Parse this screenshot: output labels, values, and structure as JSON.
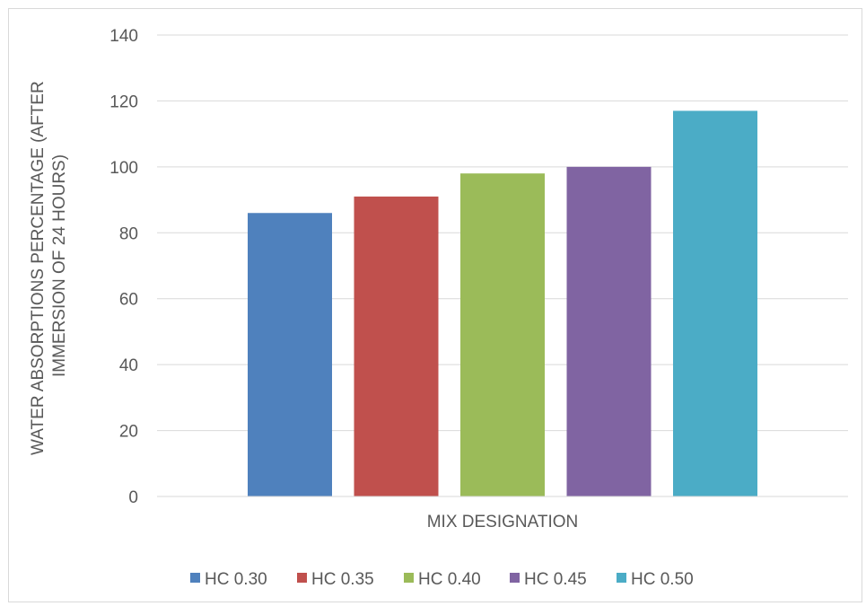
{
  "chart_data": {
    "type": "bar",
    "title": "",
    "xlabel": "MIX DESIGNATION",
    "ylabel_lines": [
      "WATER ABSORPTIONS PERCENTAGE  (AFTER",
      "IMMERSION OF 24 HOURS)"
    ],
    "ylim": [
      0,
      140
    ],
    "yticks": [
      0,
      20,
      40,
      60,
      80,
      100,
      120,
      140
    ],
    "grid": true,
    "legend_position": "bottom",
    "series": [
      {
        "name": "HC 0.30",
        "value": 86,
        "color": "#4f81bd"
      },
      {
        "name": "HC 0.35",
        "value": 91,
        "color": "#c0504d"
      },
      {
        "name": "HC 0.40",
        "value": 98,
        "color": "#9bbb59"
      },
      {
        "name": "HC 0.45",
        "value": 100,
        "color": "#8064a2"
      },
      {
        "name": "HC 0.50",
        "value": 117,
        "color": "#4bacc6"
      }
    ]
  }
}
